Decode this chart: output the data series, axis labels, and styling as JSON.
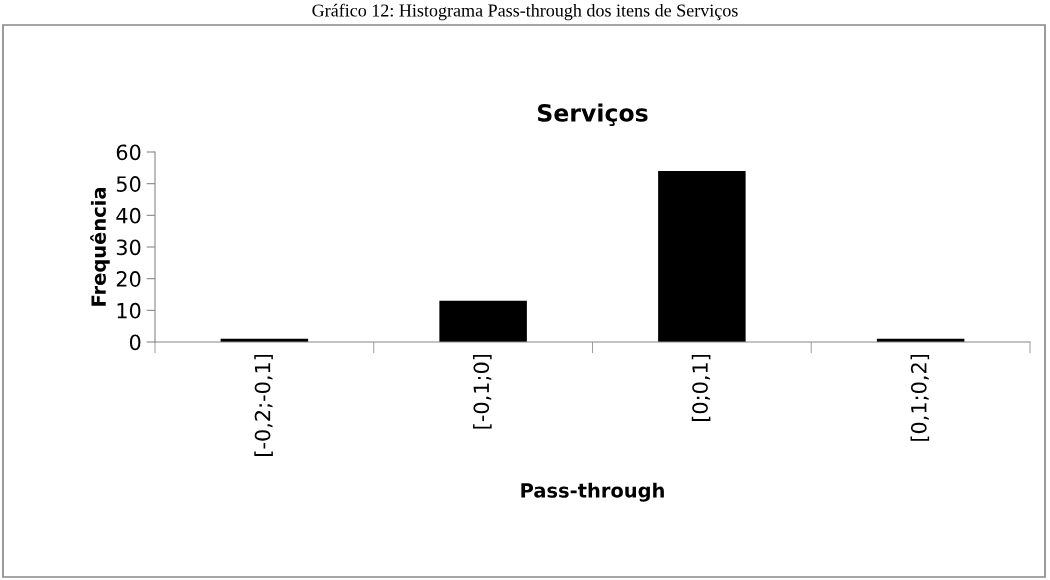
{
  "chart_data": {
    "type": "bar",
    "title": "Serviços",
    "xlabel": "Pass-through",
    "ylabel": "Frequência",
    "categories": [
      "[-0,2;-0,1]",
      "[-0,1;0]",
      "[0;0,1]",
      "[0,1;0,2]"
    ],
    "values": [
      1,
      13,
      54,
      1
    ],
    "color": "#000000",
    "ylim": [
      0,
      60
    ],
    "yticks": [
      0,
      10,
      20,
      30,
      40,
      50,
      60
    ],
    "grid": false,
    "legend": false,
    "annotations": [
      "Gráfico 12: Histograma Pass-through dos itens de Serviços"
    ]
  }
}
